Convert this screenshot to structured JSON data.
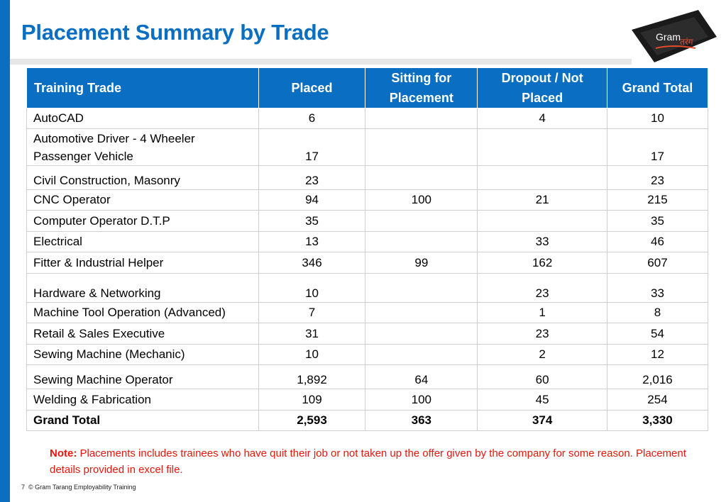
{
  "title": "Placement Summary by Trade",
  "logo": {
    "text_en": "Gram",
    "text_hi": "तरंग"
  },
  "colors": {
    "accent": "#0a6fc2",
    "note": "#e8160c"
  },
  "table": {
    "headers": [
      "Training Trade",
      "Placed",
      "Sitting for Placement",
      "Dropout / Not Placed",
      "Grand Total"
    ],
    "rows": [
      [
        "AutoCAD",
        "6",
        "",
        "4",
        "10"
      ],
      [
        "Automotive Driver - 4 Wheeler Passenger Vehicle",
        "17",
        "",
        "",
        "17"
      ],
      [
        "Civil Construction, Masonry",
        "23",
        "",
        "",
        "23"
      ],
      [
        "CNC Operator",
        "94",
        "100",
        "21",
        "215"
      ],
      [
        "Computer Operator D.T.P",
        "35",
        "",
        "",
        "35"
      ],
      [
        "Electrical",
        "13",
        "",
        "33",
        "46"
      ],
      [
        "Fitter & Industrial Helper",
        "346",
        "99",
        "162",
        "607"
      ],
      [
        "Hardware & Networking",
        "10",
        "",
        "23",
        "33"
      ],
      [
        "Machine Tool Operation (Advanced)",
        "7",
        "",
        "1",
        "8"
      ],
      [
        "Retail & Sales Executive",
        "31",
        "",
        "23",
        "54"
      ],
      [
        "Sewing Machine (Mechanic)",
        "10",
        "",
        "2",
        "12"
      ],
      [
        "Sewing Machine Operator",
        "1,892",
        "64",
        "60",
        "2,016"
      ],
      [
        "Welding & Fabrication",
        "109",
        "100",
        "45",
        "254"
      ]
    ],
    "total": [
      "Grand Total",
      "2,593",
      "363",
      "374",
      "3,330"
    ]
  },
  "note": {
    "label": "Note:",
    "text": "Placements includes trainees who have quit their job or not taken up the offer given by the company for some reason. Placement details provided in excel file."
  },
  "footer": {
    "page": "7",
    "text": "© Gram Tarang Employability Training"
  }
}
